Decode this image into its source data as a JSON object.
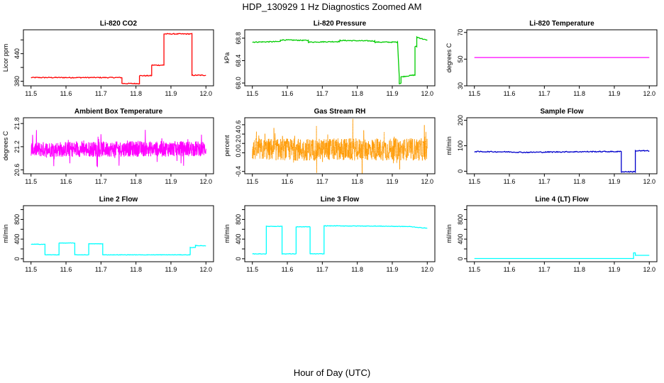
{
  "page": {
    "title": "HDP_130929  1 Hz Diagnostics Zoomed AM",
    "xlabel": "Hour of Day (UTC)"
  },
  "colors": {
    "red": "#ff0000",
    "green": "#00cc00",
    "magenta": "#ff00ff",
    "orange": "#ff9900",
    "blue": "#0000cc",
    "cyan": "#00ffff"
  },
  "chart_data": [
    {
      "type": "line",
      "title": "Li-820 CO2",
      "ylabel": "Licor ppm",
      "color": "#ff0000",
      "xlim": [
        11.5,
        12.0
      ],
      "ylim": [
        370,
        492
      ],
      "xticks": [
        "11.5",
        "11.6",
        "11.7",
        "11.8",
        "11.9",
        "12.0"
      ],
      "yticks": [
        380,
        410,
        440,
        470
      ],
      "ytick_labels": [
        "380",
        "",
        "440",
        ""
      ],
      "noise": 1,
      "series": [
        {
          "x": [
            11.5,
            11.76,
            11.76,
            11.81,
            11.81,
            11.845,
            11.845,
            11.88,
            11.88,
            11.96,
            11.96,
            12.0
          ],
          "y": [
            388,
            388,
            375,
            375,
            392,
            392,
            415,
            415,
            483,
            483,
            393,
            393
          ]
        }
      ]
    },
    {
      "type": "line",
      "title": "Li-820 Pressure",
      "ylabel": "kPa",
      "color": "#00cc00",
      "xlim": [
        11.5,
        12.0
      ],
      "ylim": [
        67.95,
        68.95
      ],
      "xticks": [
        "11.5",
        "11.6",
        "11.7",
        "11.8",
        "11.9",
        "12.0"
      ],
      "yticks": [
        68.0,
        68.4,
        68.8
      ],
      "ytick_labels": [
        "68.0",
        "68.4",
        "68.8"
      ],
      "noise": 0.008,
      "series": [
        {
          "x": [
            11.5,
            11.58,
            11.58,
            11.66,
            11.66,
            11.75,
            11.75,
            11.85,
            11.85,
            11.915,
            11.92,
            11.92,
            11.925,
            11.925,
            11.96,
            11.965,
            11.965,
            11.97,
            11.97,
            12.0
          ],
          "y": [
            68.73,
            68.74,
            68.77,
            68.76,
            68.73,
            68.74,
            68.76,
            68.75,
            68.73,
            68.73,
            68.12,
            67.99,
            68.0,
            68.11,
            68.14,
            68.14,
            68.65,
            68.65,
            68.82,
            68.76
          ]
        }
      ]
    },
    {
      "type": "line",
      "title": "Li-820 Temperature",
      "ylabel": "degrees C",
      "color": "#ff00ff",
      "xlim": [
        11.5,
        12.0
      ],
      "ylim": [
        30,
        72
      ],
      "xticks": [
        "11.5",
        "11.6",
        "11.7",
        "11.8",
        "11.9",
        "12.0"
      ],
      "yticks": [
        30,
        50,
        70
      ],
      "ytick_labels": [
        "30",
        "50",
        "70"
      ],
      "noise": 0,
      "series": [
        {
          "x": [
            11.5,
            12.0
          ],
          "y": [
            51.2,
            51.2
          ]
        }
      ]
    },
    {
      "type": "line",
      "title": "Ambient Box Temperature",
      "ylabel": "degrees C",
      "color": "#ff00ff",
      "xlim": [
        11.5,
        12.0
      ],
      "ylim": [
        20.5,
        21.95
      ],
      "xticks": [
        "11.5",
        "11.6",
        "11.7",
        "11.8",
        "11.9",
        "12.0"
      ],
      "yticks": [
        20.6,
        21.2,
        21.8
      ],
      "ytick_labels": [
        "20.6",
        "21.2",
        "21.8"
      ],
      "noise": 0.2,
      "noise_samples": 900,
      "series": [
        {
          "x": [
            11.5,
            12.0
          ],
          "y": [
            21.13,
            21.15
          ]
        }
      ]
    },
    {
      "type": "line",
      "title": "Gas Stream RH",
      "ylabel": "percent",
      "color": "#ff9900",
      "xlim": [
        11.5,
        12.0
      ],
      "ylim": [
        -0.45,
        0.75
      ],
      "xticks": [
        "11.5",
        "11.6",
        "11.7",
        "11.8",
        "11.9",
        "12.0"
      ],
      "yticks": [
        -0.4,
        0.0,
        0.2,
        0.4,
        0.6
      ],
      "ytick_labels": [
        "-0.4",
        "0.0",
        "0.2",
        "0.4",
        "0.6"
      ],
      "noise": 0.24,
      "noise_samples": 900,
      "series": [
        {
          "x": [
            11.5,
            12.0
          ],
          "y": [
            0.07,
            0.07
          ]
        }
      ]
    },
    {
      "type": "line",
      "title": "Sample Flow",
      "ylabel": "ml/min",
      "color": "#0000cc",
      "xlim": [
        11.5,
        12.0
      ],
      "ylim": [
        -10,
        210
      ],
      "xticks": [
        "11.5",
        "11.6",
        "11.7",
        "11.8",
        "11.9",
        "12.0"
      ],
      "yticks": [
        0,
        100,
        200
      ],
      "ytick_labels": [
        "0",
        "100",
        "200"
      ],
      "noise": 2,
      "series": [
        {
          "x": [
            11.5,
            11.6,
            11.64,
            11.75,
            11.85,
            11.92,
            11.92,
            11.96,
            11.96,
            12.0
          ],
          "y": [
            77,
            76,
            74,
            76,
            77,
            77,
            -2,
            -2,
            80,
            80
          ]
        }
      ]
    },
    {
      "type": "line",
      "title": "Line 2 Flow",
      "ylabel": "ml/min",
      "color": "#00ffff",
      "xlim": [
        11.5,
        12.0
      ],
      "ylim": [
        -60,
        1080
      ],
      "xticks": [
        "11.5",
        "11.6",
        "11.7",
        "11.8",
        "11.9",
        "12.0"
      ],
      "yticks": [
        0,
        200,
        400,
        600,
        800,
        1000
      ],
      "ytick_labels": [
        "0",
        "",
        "400",
        "",
        "800",
        ""
      ],
      "noise": 4,
      "series": [
        {
          "x": [
            11.5,
            11.54,
            11.54,
            11.58,
            11.58,
            11.625,
            11.625,
            11.665,
            11.665,
            11.705,
            11.705,
            11.955,
            11.955,
            11.97,
            11.97,
            12.0
          ],
          "y": [
            295,
            295,
            80,
            80,
            320,
            320,
            80,
            80,
            305,
            305,
            80,
            80,
            230,
            230,
            270,
            260
          ]
        }
      ]
    },
    {
      "type": "line",
      "title": "Line 3 Flow",
      "ylabel": "ml/min",
      "color": "#00ffff",
      "xlim": [
        11.5,
        12.0
      ],
      "ylim": [
        -60,
        1080
      ],
      "xticks": [
        "11.5",
        "11.6",
        "11.7",
        "11.8",
        "11.9",
        "12.0"
      ],
      "yticks": [
        0,
        200,
        400,
        600,
        800,
        1000
      ],
      "ytick_labels": [
        "0",
        "",
        "400",
        "",
        "800",
        ""
      ],
      "noise": 5,
      "series": [
        {
          "x": [
            11.5,
            11.54,
            11.54,
            11.585,
            11.585,
            11.625,
            11.625,
            11.665,
            11.665,
            11.705,
            11.705,
            11.85,
            11.95,
            12.0
          ],
          "y": [
            100,
            100,
            660,
            660,
            100,
            100,
            650,
            650,
            100,
            100,
            670,
            665,
            655,
            620
          ]
        }
      ]
    },
    {
      "type": "line",
      "title": "Line 4 (LT) Flow",
      "ylabel": "ml/min",
      "color": "#00ffff",
      "xlim": [
        11.5,
        12.0
      ],
      "ylim": [
        -60,
        1080
      ],
      "xticks": [
        "11.5",
        "11.6",
        "11.7",
        "11.8",
        "11.9",
        "12.0"
      ],
      "yticks": [
        0,
        200,
        400,
        600,
        800,
        1000
      ],
      "ytick_labels": [
        "0",
        "",
        "400",
        "",
        "800",
        ""
      ],
      "noise": 0,
      "series": [
        {
          "x": [
            11.5,
            11.955,
            11.955,
            11.96,
            11.96,
            12.0
          ],
          "y": [
            5,
            5,
            120,
            120,
            70,
            70
          ]
        }
      ]
    }
  ]
}
